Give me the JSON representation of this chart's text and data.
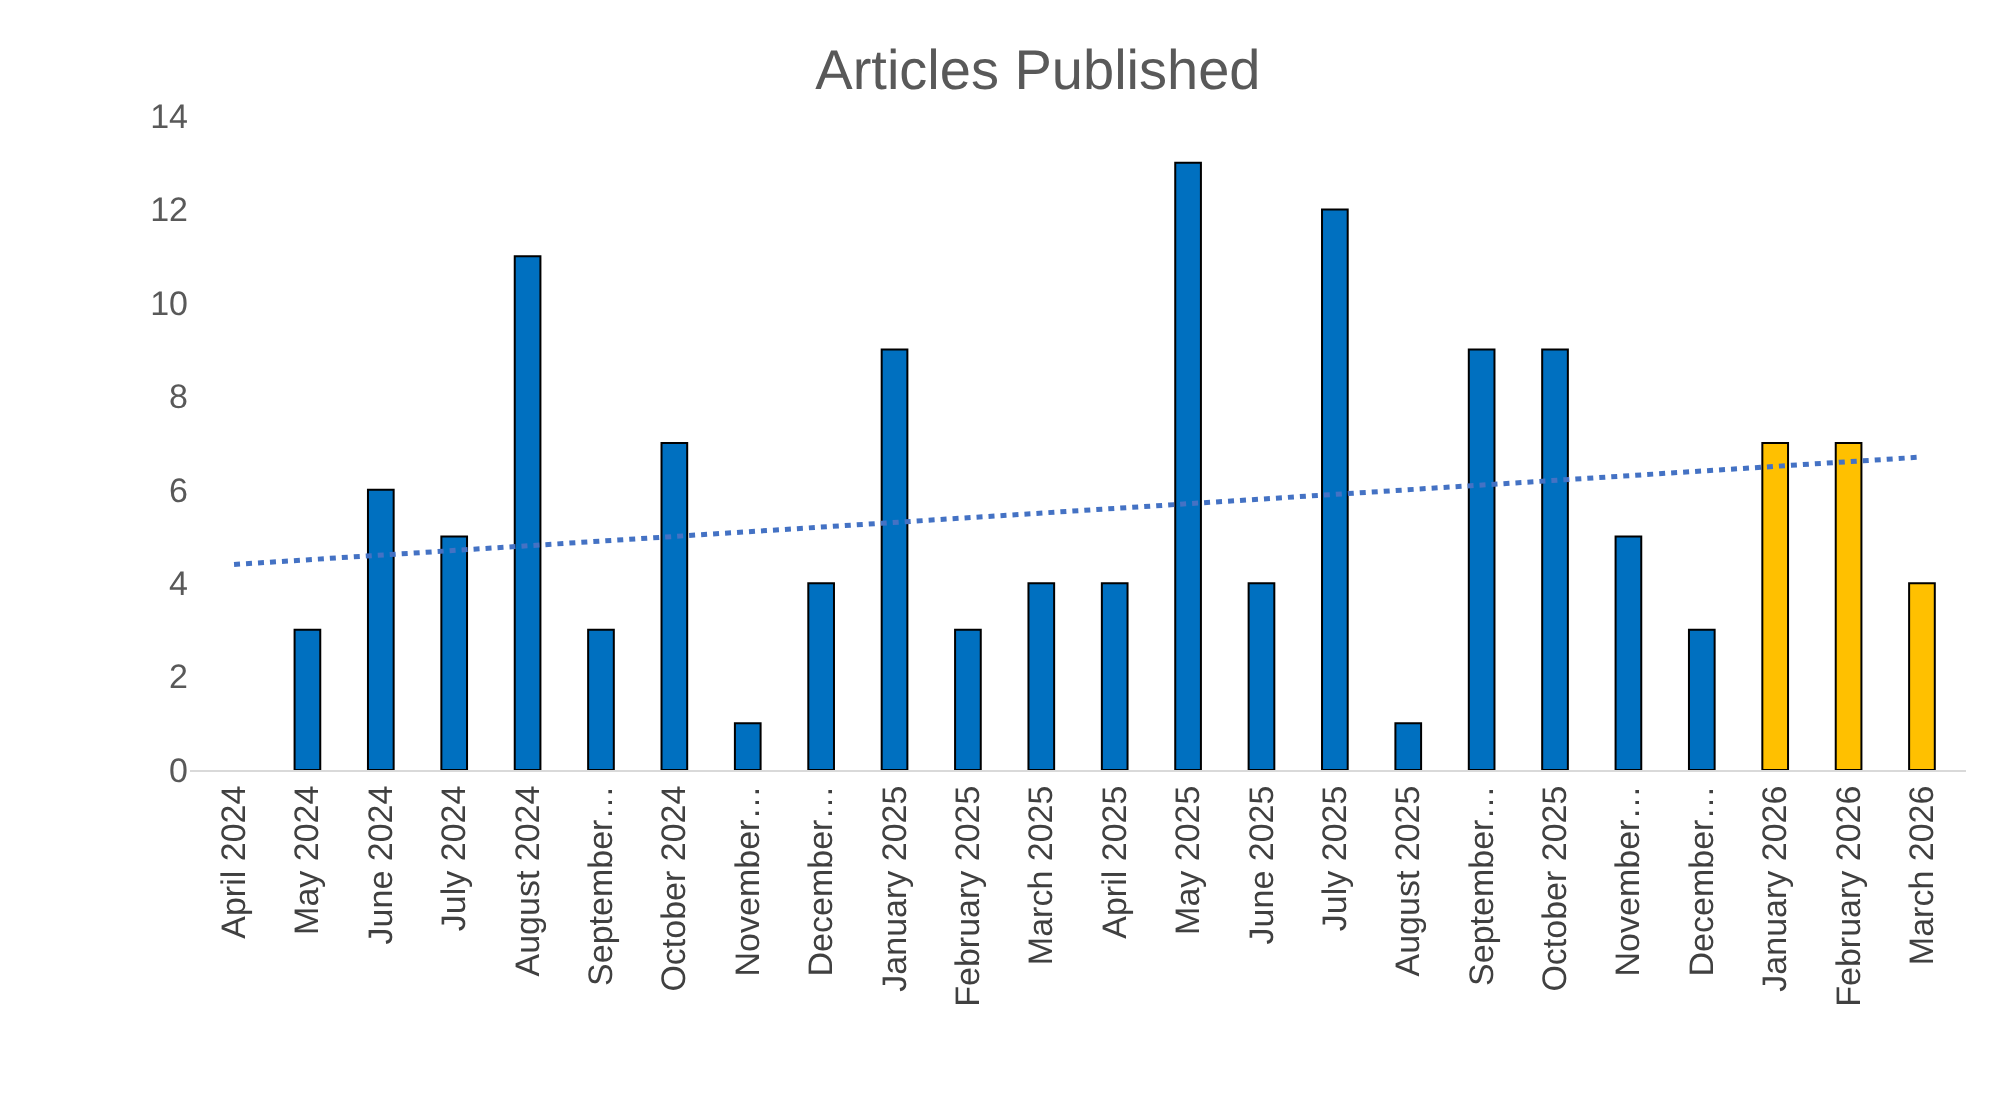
{
  "chart_data": {
    "type": "bar",
    "title": "Articles Published",
    "categories": [
      "April 2024",
      "May 2024",
      "June 2024",
      "July 2024",
      "August 2024",
      "September…",
      "October 2024",
      "November…",
      "December…",
      "January 2025",
      "February 2025",
      "March 2025",
      "April 2025",
      "May 2025",
      "June 2025",
      "July 2025",
      "August 2025",
      "September…",
      "October 2025",
      "November…",
      "December…",
      "January 2026",
      "February 2026",
      "March 2026"
    ],
    "series": [
      {
        "values": [
          0,
          3,
          6,
          5,
          11,
          3,
          7,
          1,
          4,
          9,
          3,
          4,
          4,
          13,
          4,
          12,
          1,
          9,
          9,
          5,
          3,
          7,
          7,
          4
        ],
        "colors": [
          "#0070c0",
          "#0070c0",
          "#0070c0",
          "#0070c0",
          "#0070c0",
          "#0070c0",
          "#0070c0",
          "#0070c0",
          "#0070c0",
          "#0070c0",
          "#0070c0",
          "#0070c0",
          "#0070c0",
          "#0070c0",
          "#0070c0",
          "#0070c0",
          "#0070c0",
          "#0070c0",
          "#0070c0",
          "#0070c0",
          "#0070c0",
          "#ffc000",
          "#ffc000",
          "#ffc000"
        ]
      },
      {
        "type": "line",
        "x": [
          "April 2024",
          "March 2026"
        ],
        "values": [
          4.4,
          6.7
        ],
        "color": "#4472c4",
        "line_style": "dotted"
      }
    ],
    "ylim": [
      0,
      14
    ],
    "yticks": [
      0,
      2,
      4,
      6,
      8,
      10,
      12,
      14
    ],
    "grid": false
  }
}
